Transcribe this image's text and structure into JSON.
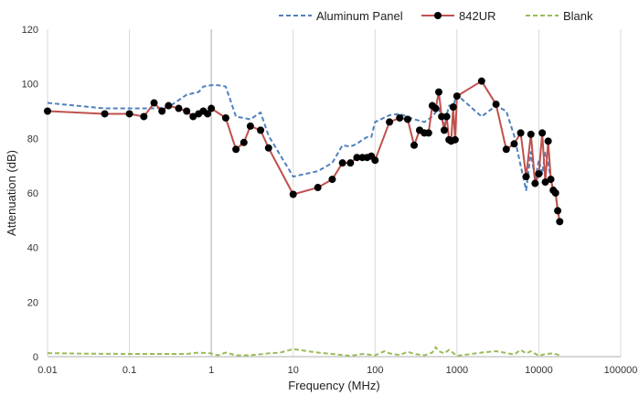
{
  "chart_data": {
    "type": "line",
    "xlabel": "Frequency (MHz)",
    "ylabel": "Attenuation (dB)",
    "x_scale": "log",
    "xlim": [
      0.01,
      100000
    ],
    "ylim": [
      0,
      120
    ],
    "x_ticks": [
      0.01,
      0.1,
      1,
      10,
      100,
      1000,
      10000,
      100000
    ],
    "x_tick_labels": [
      "0.01",
      "0.1",
      "1",
      "10",
      "100",
      "1000",
      "10000",
      "100000"
    ],
    "y_ticks": [
      0,
      20,
      40,
      60,
      80,
      100,
      120
    ],
    "y_tick_labels": [
      "0",
      "20",
      "40",
      "60",
      "80",
      "100",
      "120"
    ],
    "grid": "vertical decades",
    "legend_position": "top-right",
    "series": [
      {
        "name": "Aluminum Panel",
        "color": "#4f81bd",
        "style": "dashed",
        "markers": false,
        "x": [
          0.01,
          0.05,
          0.1,
          0.15,
          0.2,
          0.3,
          0.5,
          0.7,
          0.8,
          1,
          1.2,
          1.5,
          2,
          3,
          4,
          5,
          10,
          20,
          30,
          40,
          50,
          60,
          70,
          80,
          90,
          100,
          150,
          200,
          300,
          400,
          500,
          600,
          700,
          800,
          900,
          1000,
          2000,
          3000,
          4000,
          5000,
          6000,
          7000,
          8000,
          9000,
          10000,
          11000,
          12000,
          13000,
          14000,
          15000,
          16000,
          17000,
          18000
        ],
        "y": [
          93,
          91,
          91,
          91,
          91,
          91.5,
          96,
          97,
          99,
          99.5,
          99.5,
          99,
          88,
          87,
          89.5,
          81,
          66,
          68,
          71,
          77.5,
          77,
          78,
          79.5,
          80.5,
          80.5,
          86,
          88.5,
          89,
          87,
          86,
          88,
          91,
          85,
          92,
          92,
          96,
          88,
          92,
          90,
          81,
          70,
          61,
          75,
          65,
          72,
          67,
          75,
          71,
          65,
          61,
          60,
          54,
          50
        ]
      },
      {
        "name": "842UR",
        "color": "#c0504d",
        "style": "solid",
        "markers": true,
        "marker_color": "#000000",
        "x": [
          0.01,
          0.05,
          0.1,
          0.15,
          0.2,
          0.25,
          0.3,
          0.4,
          0.5,
          0.6,
          0.7,
          0.8,
          0.9,
          1,
          1.5,
          2,
          2.5,
          3,
          4,
          5,
          10,
          20,
          30,
          40,
          50,
          60,
          70,
          80,
          90,
          100,
          150,
          200,
          250,
          300,
          350,
          400,
          450,
          500,
          550,
          600,
          650,
          700,
          750,
          800,
          850,
          900,
          950,
          1000,
          2000,
          3000,
          4000,
          5000,
          6000,
          7000,
          8000,
          9000,
          10000,
          11000,
          12000,
          13000,
          14000,
          15000,
          16000,
          17000,
          18000
        ],
        "y": [
          90,
          89,
          89,
          88,
          93,
          90,
          92,
          91,
          90,
          88,
          89,
          90,
          89,
          91,
          87.5,
          76,
          78.5,
          84.5,
          83,
          76.5,
          59.5,
          62,
          65,
          71,
          71,
          73,
          73,
          73,
          73.5,
          72,
          86,
          87.5,
          87,
          77.5,
          83,
          82,
          82,
          92,
          91,
          97,
          88,
          83,
          88,
          79.5,
          79,
          91.5,
          79.5,
          95.5,
          101,
          92.5,
          76,
          78,
          82,
          66,
          81.5,
          63.5,
          67,
          82,
          64,
          79,
          65,
          61,
          60,
          53.5,
          49.5
        ]
      },
      {
        "name": "Blank",
        "color": "#9bbb59",
        "style": "dashed",
        "markers": false,
        "x": [
          0.01,
          0.03,
          0.1,
          0.3,
          0.5,
          0.7,
          1,
          1.2,
          1.5,
          2,
          3,
          5,
          7,
          10,
          15,
          20,
          30,
          50,
          70,
          100,
          130,
          150,
          200,
          250,
          300,
          400,
          500,
          550,
          600,
          700,
          800,
          1000,
          1500,
          2000,
          3000,
          5000,
          6000,
          7000,
          8000,
          10000,
          12000,
          15000,
          18000
        ],
        "y": [
          1.3,
          1.1,
          1,
          1,
          1,
          1.5,
          1.2,
          0.5,
          1.5,
          0.5,
          0.5,
          1.2,
          1.5,
          2.8,
          2,
          1.5,
          1,
          0.3,
          1,
          0.5,
          2,
          1.2,
          0.6,
          1.8,
          1,
          0.5,
          1.5,
          3.5,
          2,
          1.2,
          2.5,
          0.3,
          1,
          1.5,
          2,
          0.8,
          2.5,
          1.2,
          2,
          0.3,
          1,
          1.2,
          0.5
        ]
      }
    ]
  }
}
